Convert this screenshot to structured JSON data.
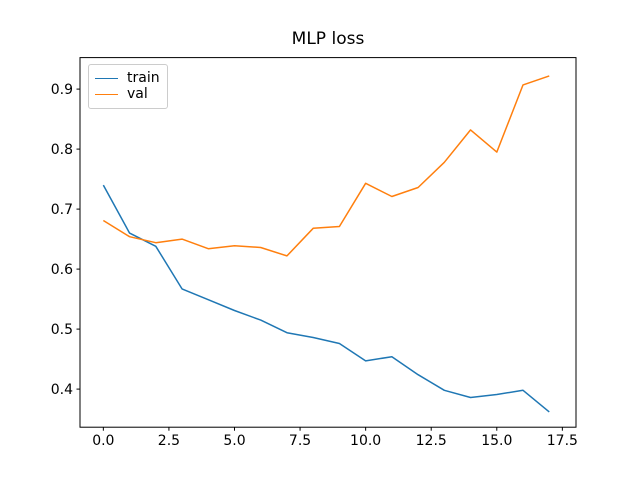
{
  "chart_data": {
    "type": "line",
    "title": "MLP loss",
    "xlabel": "",
    "ylabel": "",
    "x": [
      0,
      1,
      2,
      3,
      4,
      5,
      6,
      7,
      8,
      9,
      10,
      11,
      12,
      13,
      14,
      15,
      16,
      17
    ],
    "series": [
      {
        "name": "train",
        "color": "#1f77b4",
        "values": [
          0.74,
          0.66,
          0.638,
          0.567,
          0.549,
          0.531,
          0.515,
          0.494,
          0.486,
          0.476,
          0.447,
          0.454,
          0.424,
          0.398,
          0.386,
          0.391,
          0.398,
          0.362
        ]
      },
      {
        "name": "val",
        "color": "#ff7f0e",
        "values": [
          0.681,
          0.654,
          0.644,
          0.65,
          0.634,
          0.639,
          0.636,
          0.622,
          0.668,
          0.671,
          0.743,
          0.721,
          0.736,
          0.778,
          0.832,
          0.795,
          0.907,
          0.922
        ]
      }
    ],
    "xlim": [
      -0.89,
      18.02
    ],
    "ylim": [
      0.3365,
      0.9525
    ],
    "xticks": [
      0.0,
      2.5,
      5.0,
      7.5,
      10.0,
      12.5,
      15.0,
      17.5
    ],
    "xtick_labels": [
      "0.0",
      "2.5",
      "5.0",
      "7.5",
      "10.0",
      "12.5",
      "15.0",
      "17.5"
    ],
    "yticks": [
      0.4,
      0.5,
      0.6,
      0.7,
      0.8,
      0.9
    ],
    "ytick_labels": [
      "0.4",
      "0.5",
      "0.6",
      "0.7",
      "0.8",
      "0.9"
    ],
    "grid": false,
    "legend": {
      "position": "upper left",
      "entries": [
        "train",
        "val"
      ]
    }
  }
}
